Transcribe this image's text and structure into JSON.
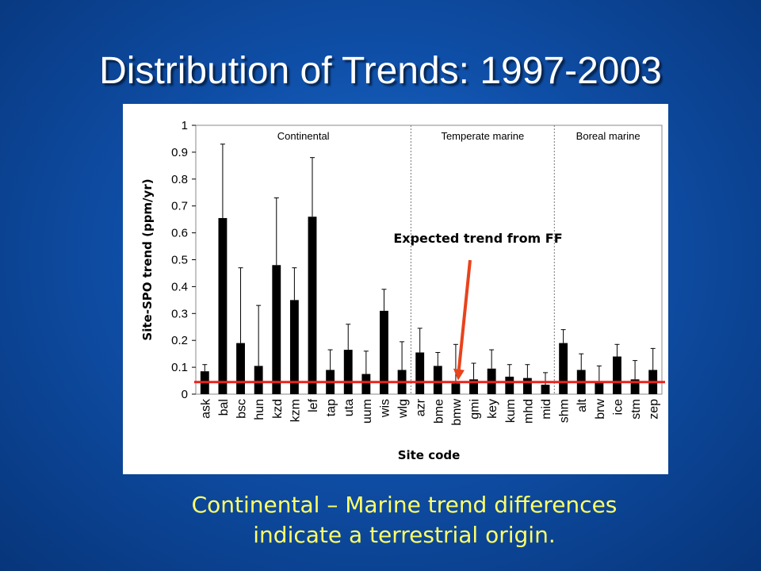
{
  "slide": {
    "title": "Distribution of Trends: 1997-2003",
    "caption_line1": "Continental – Marine trend differences",
    "caption_line2": "indicate a terrestrial origin.",
    "caption_color": "#ffff66"
  },
  "chart_data": {
    "type": "bar",
    "title": "",
    "xlabel": "Site code",
    "ylabel": "Site-SPO trend (ppm/yr)",
    "ylim": [
      0,
      1
    ],
    "yticks": [
      "0",
      "0.1",
      "0.2",
      "0.3",
      "0.4",
      "0.5",
      "0.6",
      "0.7",
      "0.8",
      "0.9",
      "1"
    ],
    "grid": false,
    "categories": [
      "ask",
      "bal",
      "bsc",
      "hun",
      "kzd",
      "kzm",
      "lef",
      "tap",
      "uta",
      "uum",
      "wis",
      "wlg",
      "azr",
      "bme",
      "bmw",
      "gmi",
      "key",
      "kum",
      "mhd",
      "mid",
      "shm",
      "alt",
      "brw",
      "ice",
      "stm",
      "zep"
    ],
    "values": [
      0.085,
      0.655,
      0.19,
      0.105,
      0.48,
      0.35,
      0.66,
      0.09,
      0.165,
      0.075,
      0.31,
      0.09,
      0.155,
      0.105,
      0.04,
      0.055,
      0.095,
      0.065,
      0.06,
      0.035,
      0.19,
      0.09,
      0.045,
      0.14,
      0.055,
      0.09
    ],
    "error_upper": [
      0.11,
      0.93,
      0.47,
      0.33,
      0.73,
      0.47,
      0.88,
      0.165,
      0.26,
      0.16,
      0.39,
      0.195,
      0.245,
      0.155,
      0.185,
      0.115,
      0.165,
      0.11,
      0.11,
      0.08,
      0.24,
      0.15,
      0.105,
      0.185,
      0.125,
      0.17
    ],
    "regions": [
      {
        "label": "Continental",
        "from": "ask",
        "to": "wlg"
      },
      {
        "label": "Temperate marine",
        "from": "azr",
        "to": "mid"
      },
      {
        "label": "Boreal marine",
        "from": "shm",
        "to": "zep"
      }
    ],
    "reference_line": {
      "value": 0.045,
      "color": "#e8231c"
    },
    "annotation": {
      "text": "Expected trend from FF",
      "points_to": "bmw",
      "color": "#e8431c"
    },
    "bar_color": "#000000"
  }
}
